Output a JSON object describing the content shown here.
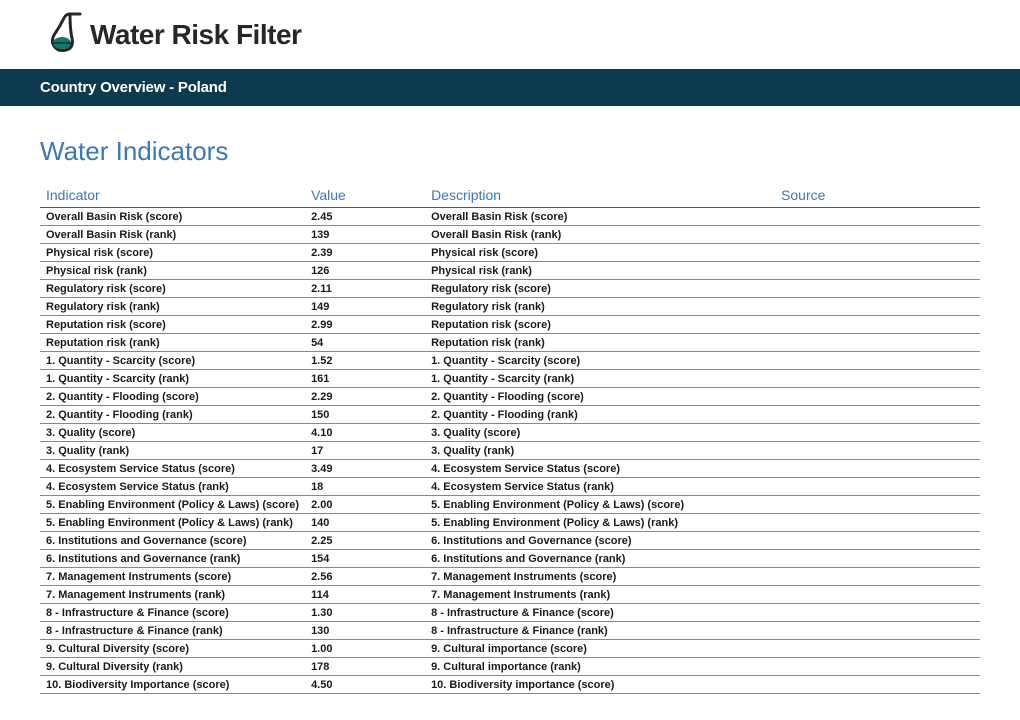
{
  "logo": {
    "text": "Water Risk Filter"
  },
  "header": {
    "title": "Country Overview - Poland"
  },
  "section": {
    "title": "Water Indicators"
  },
  "table": {
    "columns": {
      "indicator": "Indicator",
      "value": "Value",
      "description": "Description",
      "source": "Source"
    },
    "rows": [
      {
        "indicator": "Overall Basin Risk (score)",
        "value": "2.45",
        "description": "Overall Basin Risk (score)",
        "source": ""
      },
      {
        "indicator": "Overall Basin Risk (rank)",
        "value": "139",
        "description": "Overall Basin Risk (rank)",
        "source": ""
      },
      {
        "indicator": "Physical risk (score)",
        "value": "2.39",
        "description": "Physical risk (score)",
        "source": ""
      },
      {
        "indicator": "Physical risk (rank)",
        "value": "126",
        "description": "Physical risk (rank)",
        "source": ""
      },
      {
        "indicator": "Regulatory risk (score)",
        "value": "2.11",
        "description": "Regulatory risk (score)",
        "source": ""
      },
      {
        "indicator": "Regulatory risk (rank)",
        "value": "149",
        "description": "Regulatory risk (rank)",
        "source": ""
      },
      {
        "indicator": "Reputation risk (score)",
        "value": "2.99",
        "description": "Reputation risk (score)",
        "source": ""
      },
      {
        "indicator": "Reputation risk (rank)",
        "value": "54",
        "description": "Reputation risk (rank)",
        "source": ""
      },
      {
        "indicator": "1. Quantity - Scarcity (score)",
        "value": "1.52",
        "description": "1. Quantity - Scarcity (score)",
        "source": ""
      },
      {
        "indicator": "1. Quantity - Scarcity (rank)",
        "value": "161",
        "description": "1. Quantity - Scarcity (rank)",
        "source": ""
      },
      {
        "indicator": "2. Quantity - Flooding (score)",
        "value": "2.29",
        "description": "2. Quantity - Flooding (score)",
        "source": ""
      },
      {
        "indicator": "2. Quantity - Flooding (rank)",
        "value": "150",
        "description": "2. Quantity - Flooding (rank)",
        "source": ""
      },
      {
        "indicator": "3. Quality (score)",
        "value": "4.10",
        "description": "3. Quality (score)",
        "source": ""
      },
      {
        "indicator": "3. Quality (rank)",
        "value": "17",
        "description": "3. Quality (rank)",
        "source": ""
      },
      {
        "indicator": "4. Ecosystem Service Status (score)",
        "value": "3.49",
        "description": "4. Ecosystem Service Status (score)",
        "source": ""
      },
      {
        "indicator": "4. Ecosystem Service Status (rank)",
        "value": "18",
        "description": "4. Ecosystem Service Status (rank)",
        "source": ""
      },
      {
        "indicator": "5. Enabling Environment (Policy & Laws) (score)",
        "value": "2.00",
        "description": "5. Enabling Environment (Policy & Laws) (score)",
        "source": ""
      },
      {
        "indicator": "5. Enabling Environment (Policy & Laws) (rank)",
        "value": "140",
        "description": "5. Enabling Environment (Policy & Laws) (rank)",
        "source": ""
      },
      {
        "indicator": "6. Institutions and Governance (score)",
        "value": "2.25",
        "description": "6. Institutions and Governance (score)",
        "source": ""
      },
      {
        "indicator": "6. Institutions and Governance (rank)",
        "value": "154",
        "description": "6. Institutions and Governance (rank)",
        "source": ""
      },
      {
        "indicator": "7. Management Instruments (score)",
        "value": "2.56",
        "description": "7. Management Instruments (score)",
        "source": ""
      },
      {
        "indicator": "7. Management Instruments (rank)",
        "value": "114",
        "description": "7. Management Instruments (rank)",
        "source": ""
      },
      {
        "indicator": "8 - Infrastructure & Finance (score)",
        "value": "1.30",
        "description": "8 - Infrastructure & Finance (score)",
        "source": ""
      },
      {
        "indicator": "8 - Infrastructure & Finance (rank)",
        "value": "130",
        "description": "8 - Infrastructure & Finance (rank)",
        "source": ""
      },
      {
        "indicator": "9. Cultural Diversity (score)",
        "value": "1.00",
        "description": "9. Cultural importance (score)",
        "source": ""
      },
      {
        "indicator": "9. Cultural Diversity (rank)",
        "value": "178",
        "description": "9. Cultural importance (rank)",
        "source": ""
      },
      {
        "indicator": "10. Biodiversity Importance (score)",
        "value": "4.50",
        "description": "10. Biodiversity importance (score)",
        "source": ""
      }
    ]
  },
  "colors": {
    "band_bg": "#0d3b4d",
    "heading": "#3b78b5",
    "text": "#1a1a1a"
  }
}
